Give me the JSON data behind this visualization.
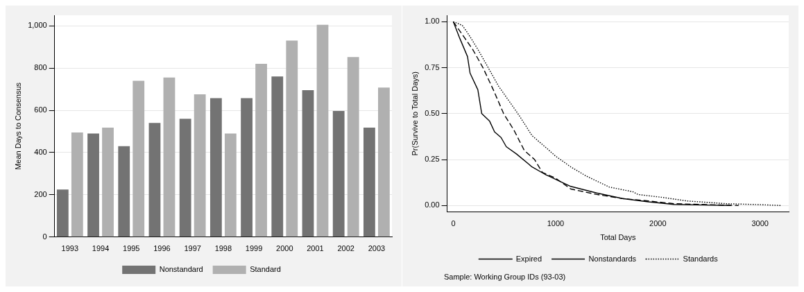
{
  "chart_data": [
    {
      "type": "bar",
      "ylabel": "Mean Days to Consensus",
      "categories": [
        "1993",
        "1994",
        "1995",
        "1996",
        "1997",
        "1998",
        "1999",
        "2000",
        "2001",
        "2002",
        "2003"
      ],
      "series": [
        {
          "name": "Nonstandard",
          "color": "#737373",
          "values": [
            225,
            490,
            430,
            540,
            560,
            658,
            658,
            760,
            695,
            597,
            518
          ]
        },
        {
          "name": "Standard",
          "color": "#b0b0b0",
          "values": [
            495,
            518,
            740,
            755,
            676,
            490,
            820,
            930,
            1005,
            852,
            708
          ]
        }
      ],
      "ylim": [
        0,
        1050
      ],
      "yticks": [
        0,
        200,
        400,
        600,
        800,
        {
          "value": 1000,
          "label": "1,000"
        }
      ],
      "grid": "y",
      "legend": "bottom"
    },
    {
      "type": "line",
      "xlabel": "Total Days",
      "ylabel": "Pr(Survive to Total Days)",
      "marker": "none",
      "grid": "y",
      "legend": "bottom",
      "series": [
        {
          "name": "Expired",
          "color": "#000000",
          "line_style": "solid",
          "x": [
            0,
            63,
            139,
            164,
            240,
            278,
            354,
            404,
            467,
            518,
            619,
            770,
            896,
            1023,
            1149,
            1402,
            1654,
            1907,
            2159,
            2715
          ],
          "values": [
            1,
            0.91,
            0.81,
            0.72,
            0.63,
            0.5,
            0.46,
            0.4,
            0.37,
            0.32,
            0.28,
            0.21,
            0.17,
            0.137,
            0.104,
            0.068,
            0.038,
            0.02,
            0.006,
            0
          ]
        },
        {
          "name": "Nonstandards",
          "color": "#000000",
          "line_style": "dashed",
          "x": [
            0,
            88,
            189,
            290,
            391,
            492,
            593,
            694,
            795,
            871,
            997,
            1149,
            1402,
            1654,
            1907,
            2159,
            2790
          ],
          "values": [
            1,
            0.93,
            0.85,
            0.75,
            0.63,
            0.5,
            0.41,
            0.3,
            0.25,
            0.18,
            0.15,
            0.09,
            0.06,
            0.038,
            0.025,
            0.01,
            0
          ]
        },
        {
          "name": "Standards",
          "color": "#000000",
          "line_style": "dotted",
          "x": [
            0,
            88,
            139,
            240,
            341,
            442,
            543,
            644,
            770,
            896,
            997,
            1149,
            1301,
            1528,
            1755,
            1806,
            2033,
            2285,
            2664,
            2992,
            3207
          ],
          "values": [
            1,
            0.98,
            0.94,
            0.85,
            0.75,
            0.65,
            0.57,
            0.49,
            0.38,
            0.32,
            0.27,
            0.21,
            0.16,
            0.1,
            0.075,
            0.06,
            0.045,
            0.025,
            0.01,
            0.005,
            0
          ]
        }
      ],
      "xlim": [
        -60,
        3280
      ],
      "xticks": [
        0,
        1000,
        2000,
        3000
      ],
      "ylim": [
        -0.035,
        1.035
      ],
      "yticks": [
        {
          "value": 0,
          "label": "0.00"
        },
        {
          "value": 0.25,
          "label": "0.25"
        },
        {
          "value": 0.5,
          "label": "0.50"
        },
        {
          "value": 0.75,
          "label": "0.75"
        },
        {
          "value": 1,
          "label": "1.00"
        }
      ],
      "annotations": [
        "Sample: Working Group IDs (93-03)"
      ]
    }
  ]
}
